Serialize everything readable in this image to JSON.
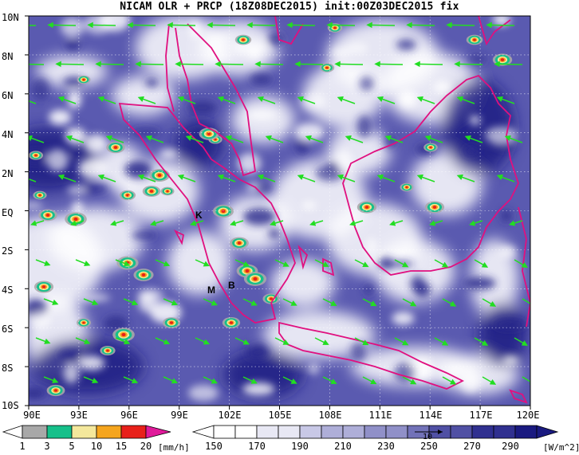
{
  "title": "NICAM OLR + PRCP (18Z08DEC2015) init:00Z03DEC2015 fix",
  "map": {
    "lat_labels": [
      "10N",
      "8N",
      "6N",
      "4N",
      "2N",
      "EQ",
      "2S",
      "4S",
      "6S",
      "8S",
      "10S"
    ],
    "lon_labels": [
      "90E",
      "93E",
      "96E",
      "99E",
      "102E",
      "105E",
      "108E",
      "111E",
      "114E",
      "117E",
      "120E"
    ],
    "place_markers": [
      "K",
      "M",
      "B"
    ],
    "coastline_color": "#e0107f",
    "wind_vector_color": "#22dd22"
  },
  "precip_colorbar": {
    "labels": [
      "1",
      "3",
      "5",
      "10",
      "15",
      "20"
    ],
    "unit": "[mm/h]",
    "colors": [
      "#a8a8a8",
      "#16c08a",
      "#f4e89c",
      "#f5a51e",
      "#e8201a",
      "#e01a9a"
    ]
  },
  "olr_colorbar": {
    "labels": [
      "150",
      "170",
      "190",
      "210",
      "230",
      "250",
      "270",
      "290"
    ],
    "unit": "[W/m^2]",
    "colors": [
      "#ffffff",
      "#e8e8f4",
      "#c8c8e6",
      "#aeaed8",
      "#9090c8",
      "#7272b8",
      "#5050a4",
      "#303090",
      "#1a1a80"
    ],
    "vector_scale_label": "10"
  }
}
